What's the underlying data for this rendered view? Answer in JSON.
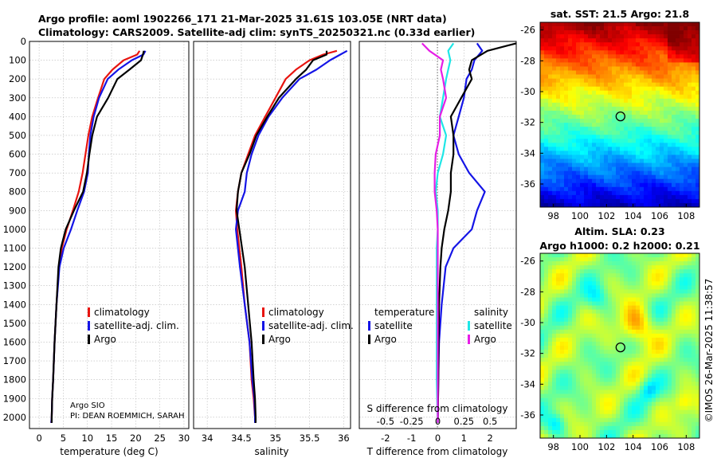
{
  "title_line1": "Argo profile: aoml 1902266_171 21-Mar-2025 31.61S 103.05E (NRT data)",
  "title_line2": "Climatology: CARS2009. Satellite-adj clim: synTS_20250321.nc (0.33d earlier)",
  "colors": {
    "climatology": "#e8140f",
    "satellite": "#1414e6",
    "argo": "#000000",
    "sat_salinity_diff": "#1ee6e6",
    "clim_salinity_diff": "#e61ee6",
    "ring": "#000000"
  },
  "attribution": {
    "line1": "Argo SIO",
    "line2": "PI: DEAN ROEMMICH, SARAH"
  },
  "timestamp": "©IMOS 26-Mar-2025 11:38:57",
  "chart_data": [
    {
      "id": "temperature",
      "type": "line",
      "xlabel": "temperature (deg C)",
      "ylabel": "",
      "xlim": [
        -2,
        31
      ],
      "ylim": [
        2060,
        0
      ],
      "xticks": [
        "0",
        "5",
        "10",
        "15",
        "20",
        "25",
        "30"
      ],
      "yticks": [
        "0",
        "100",
        "200",
        "300",
        "400",
        "500",
        "600",
        "700",
        "800",
        "900",
        "1000",
        "1100",
        "1200",
        "1300",
        "1400",
        "1500",
        "1600",
        "1700",
        "1800",
        "1900",
        "2000"
      ],
      "legend": [
        "climatology",
        "satellite-adj. clim.",
        "Argo"
      ],
      "legend_position": "lower-right",
      "series": [
        {
          "name": "climatology",
          "x": [
            20.8,
            20.3,
            17.5,
            15.2,
            13.5,
            12.2,
            11.0,
            10.2,
            9.6,
            9.0,
            8.2,
            7.0,
            5.7,
            4.7,
            4.1,
            3.6,
            3.2,
            2.9,
            2.7,
            2.6,
            2.5
          ],
          "y": [
            50,
            70,
            100,
            150,
            200,
            300,
            400,
            500,
            600,
            700,
            800,
            900,
            1000,
            1100,
            1200,
            1400,
            1600,
            1800,
            1900,
            2000,
            2030
          ]
        },
        {
          "name": "satellite-adj. clim.",
          "x": [
            22.0,
            21.6,
            19.2,
            16.4,
            14.2,
            12.4,
            11.3,
            10.6,
            10.3,
            10.1,
            9.3,
            7.9,
            6.6,
            5.1,
            4.2,
            3.6,
            3.2,
            2.9,
            2.7,
            2.6,
            2.5
          ],
          "y": [
            50,
            70,
            100,
            150,
            200,
            300,
            400,
            500,
            600,
            700,
            800,
            900,
            1000,
            1100,
            1200,
            1400,
            1600,
            1800,
            1900,
            2000,
            2030
          ]
        },
        {
          "name": "Argo",
          "x": [
            21.7,
            21.5,
            21.1,
            18.7,
            16.2,
            14.3,
            12.0,
            11.0,
            10.4,
            9.9,
            9.1,
            7.2,
            5.5,
            4.5,
            4.0,
            3.6,
            3.2,
            2.9,
            2.7,
            2.6,
            2.6
          ],
          "y": [
            50,
            70,
            100,
            150,
            200,
            300,
            400,
            500,
            600,
            700,
            800,
            900,
            1000,
            1100,
            1200,
            1400,
            1600,
            1800,
            1900,
            2000,
            2030
          ]
        }
      ]
    },
    {
      "id": "salinity",
      "type": "line",
      "xlabel": "salinity",
      "ylabel": "",
      "xlim": [
        33.8,
        36.1
      ],
      "ylim": [
        2060,
        0
      ],
      "xticks": [
        "34",
        "34.5",
        "35",
        "35.5",
        "36"
      ],
      "series": [
        {
          "name": "climatology",
          "x": [
            35.9,
            35.7,
            35.5,
            35.3,
            35.15,
            35.0,
            34.85,
            34.7,
            34.6,
            34.5,
            34.45,
            34.42,
            34.44,
            34.5,
            34.55,
            34.62,
            34.65,
            34.68,
            34.7,
            34.7
          ],
          "y": [
            50,
            70,
            100,
            150,
            200,
            300,
            400,
            500,
            600,
            700,
            800,
            900,
            1000,
            1200,
            1400,
            1600,
            1800,
            1900,
            2000,
            2030
          ]
        },
        {
          "name": "satellite-adj. clim.",
          "x": [
            36.05,
            35.95,
            35.8,
            35.6,
            35.35,
            35.1,
            34.9,
            34.75,
            34.65,
            34.58,
            34.55,
            34.45,
            34.42,
            34.48,
            34.55,
            34.62,
            34.66,
            34.69,
            34.7,
            34.7
          ],
          "y": [
            50,
            70,
            100,
            150,
            200,
            300,
            400,
            500,
            600,
            700,
            800,
            900,
            1000,
            1200,
            1400,
            1600,
            1800,
            1900,
            2000,
            2030
          ]
        },
        {
          "name": "Argo",
          "x": [
            35.75,
            35.75,
            35.55,
            35.45,
            35.3,
            35.05,
            34.88,
            34.72,
            34.62,
            34.5,
            34.45,
            34.43,
            34.47,
            34.55,
            34.6,
            34.65,
            34.68,
            34.7,
            34.71,
            34.71
          ],
          "y": [
            50,
            70,
            100,
            150,
            200,
            300,
            400,
            500,
            600,
            700,
            800,
            900,
            1000,
            1200,
            1400,
            1600,
            1800,
            1900,
            2000,
            2030
          ]
        }
      ]
    },
    {
      "id": "difference",
      "type": "line",
      "xlabel": "T difference from climatology",
      "x2label": "S difference from climatology",
      "xlim": [
        -3,
        3
      ],
      "ylim": [
        2060,
        0
      ],
      "xticks": [
        "-2",
        "-1",
        "0",
        "1",
        "2"
      ],
      "x2ticks": [
        "-0.5",
        "-0.25",
        "0",
        "0.25",
        "0.5"
      ],
      "legend_left": {
        "title": "temperature",
        "items": [
          "satellite",
          "Argo"
        ]
      },
      "legend_right": {
        "title": "salinity",
        "items": [
          "satellite",
          "Argo"
        ]
      },
      "series": [
        {
          "name": "T satellite",
          "x": [
            1.5,
            1.7,
            1.4,
            1.3,
            1.1,
            1.0,
            0.8,
            0.6,
            0.8,
            1.2,
            1.8,
            1.5,
            1.3,
            0.6,
            0.3,
            0.15,
            0.05,
            0.02,
            0.0
          ],
          "y": [
            10,
            50,
            100,
            150,
            200,
            300,
            400,
            500,
            600,
            700,
            800,
            900,
            1000,
            1100,
            1200,
            1400,
            1600,
            1800,
            2030
          ]
        },
        {
          "name": "T Argo",
          "x": [
            3.0,
            1.9,
            1.3,
            1.2,
            1.3,
            0.9,
            0.5,
            0.6,
            0.6,
            0.5,
            0.5,
            0.4,
            0.25,
            0.15,
            0.1,
            0.05,
            0.03,
            0.02,
            0.0
          ],
          "y": [
            10,
            50,
            100,
            150,
            200,
            300,
            400,
            500,
            600,
            700,
            800,
            900,
            1000,
            1100,
            1200,
            1400,
            1600,
            1800,
            2030
          ]
        },
        {
          "name": "S satellite",
          "x": [
            0.15,
            0.1,
            0.12,
            0.1,
            0.08,
            0.05,
            0.02,
            0.08,
            0.05,
            0.0,
            -0.02,
            0.0,
            0.0,
            -0.01,
            -0.01,
            -0.01,
            -0.01,
            -0.01,
            0.0
          ],
          "y": [
            10,
            50,
            100,
            150,
            200,
            300,
            400,
            500,
            600,
            700,
            800,
            900,
            1000,
            1100,
            1200,
            1400,
            1600,
            1800,
            2030
          ]
        },
        {
          "name": "S Argo",
          "x": [
            -0.15,
            -0.08,
            0.05,
            0.03,
            0.05,
            0.08,
            0.02,
            0.02,
            -0.02,
            -0.03,
            -0.03,
            -0.01,
            0.0,
            0.0,
            0.0,
            0.0,
            0.0,
            0.0,
            0.0
          ],
          "y": [
            10,
            50,
            100,
            150,
            200,
            300,
            400,
            500,
            600,
            700,
            800,
            900,
            1000,
            1100,
            1200,
            1400,
            1600,
            1800,
            2030
          ]
        }
      ]
    },
    {
      "id": "sst_map",
      "type": "heatmap",
      "title": "sat. SST: 21.5 Argo: 21.8",
      "xlim": [
        97.0,
        109.0
      ],
      "ylim": [
        -37.5,
        -25.5
      ],
      "xticks": [
        "98",
        "100",
        "102",
        "104",
        "106",
        "108"
      ],
      "yticks": [
        "-26",
        "-28",
        "-30",
        "-32",
        "-34",
        "-36"
      ],
      "xtick_values": [
        98,
        100,
        102,
        104,
        106,
        108
      ],
      "ytick_values": [
        -26,
        -28,
        -30,
        -32,
        -34,
        -36
      ],
      "marker": {
        "lon": 103.05,
        "lat": -31.61
      }
    },
    {
      "id": "sla_map",
      "type": "heatmap",
      "title_line1": "Altim. SLA: 0.23",
      "title_line2": "Argo h1000: 0.2 h2000: 0.21",
      "xlim": [
        97.0,
        109.0
      ],
      "ylim": [
        -37.5,
        -25.5
      ],
      "xticks": [
        "98",
        "100",
        "102",
        "104",
        "106",
        "108"
      ],
      "yticks": [
        "-26",
        "-28",
        "-30",
        "-32",
        "-34",
        "-36"
      ],
      "xtick_values": [
        98,
        100,
        102,
        104,
        106,
        108
      ],
      "ytick_values": [
        -26,
        -28,
        -30,
        -32,
        -34,
        -36
      ],
      "marker": {
        "lon": 103.05,
        "lat": -31.61
      }
    }
  ]
}
